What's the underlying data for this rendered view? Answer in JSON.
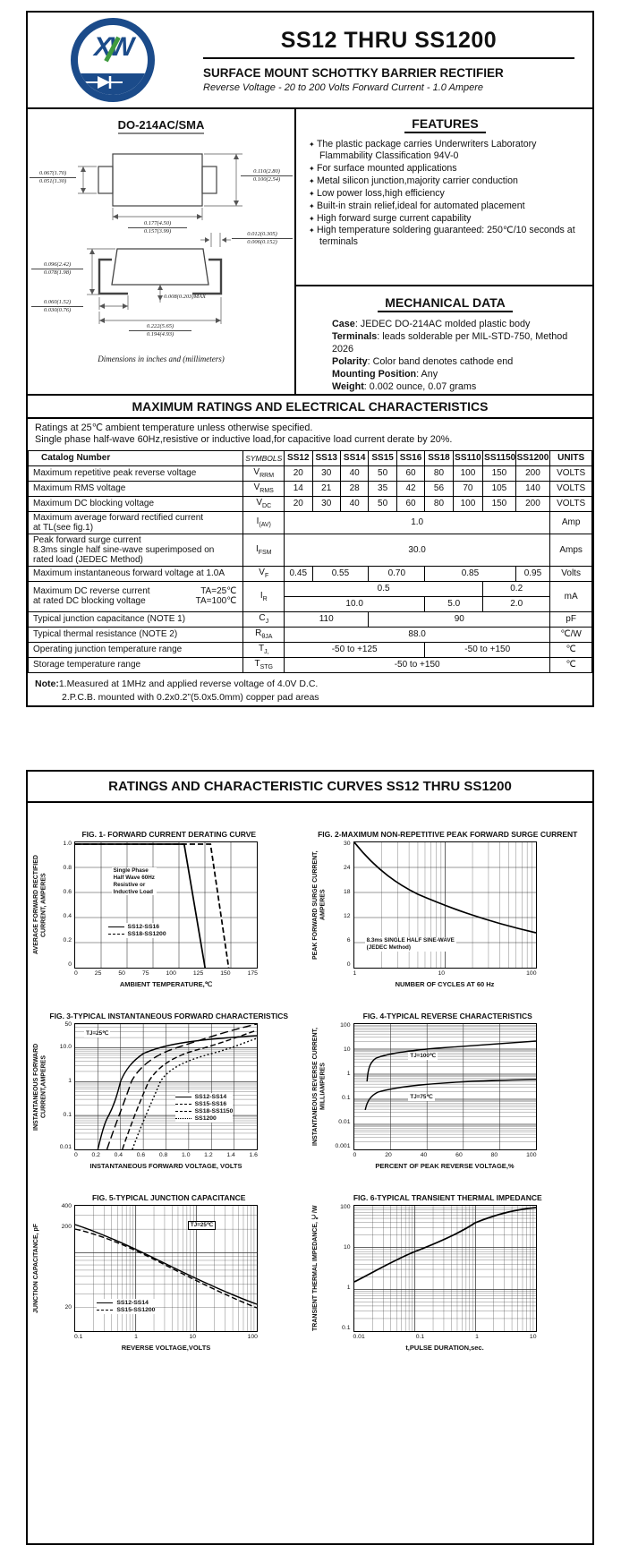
{
  "header": {
    "logo_text": "XW",
    "title": "SS12 THRU SS1200",
    "subtitle": "SURFACE MOUNT SCHOTTKY BARRIER RECTIFIER",
    "tagline": "Reverse Voltage - 20 to 200 Volts    Forward Current - 1.0 Ampere"
  },
  "package": {
    "name": "DO-214AC/SMA",
    "caption": "Dimensions in inches and (millimeters)",
    "dims": {
      "d1": {
        "t": "0.067(1.70)",
        "b": "0.051(1.30)"
      },
      "d2": {
        "t": "0.110(2.80)",
        "b": "0.100(2.54)"
      },
      "d3": {
        "t": "0.177(4.50)",
        "b": "0.157(3.99)"
      },
      "d4": {
        "t": "0.012(0.305)",
        "b": "0.006(0.152)"
      },
      "d5": {
        "t": "0.096(2.42)",
        "b": "0.078(1.98)"
      },
      "d6": {
        "t": "0.060(1.52)",
        "b": "0.030(0.76)"
      },
      "d7": {
        "t": "0.008(0.203)MAX"
      },
      "d8": {
        "t": "0.222(5.65)",
        "b": "0.194(4.93)"
      }
    }
  },
  "features": {
    "heading": "FEATURES",
    "items": [
      "The plastic package carries Underwriters Laboratory Flammability Classification 94V-0",
      "For surface mounted applications",
      "Metal silicon junction,majority carrier conduction",
      "Low power loss,high efficiency",
      "Built-in strain relief,ideal for automated placement",
      "High forward surge current capability",
      "High temperature soldering guaranteed: 250℃/10 seconds at terminals"
    ]
  },
  "mechanical": {
    "heading": "MECHANICAL DATA",
    "items": [
      {
        "label": "Case",
        "text": ": JEDEC DO-214AC molded plastic body"
      },
      {
        "label": "Terminals",
        "text": ": leads solderable per MIL-STD-750, Method 2026"
      },
      {
        "label": "Polarity",
        "text": ": Color band denotes cathode end"
      },
      {
        "label": "Mounting Position",
        "text": ": Any"
      },
      {
        "label": "Weight",
        "text": ": 0.002 ounce, 0.07 grams"
      }
    ]
  },
  "ratings": {
    "heading": "MAXIMUM RATINGS AND ELECTRICAL CHARACTERISTICS",
    "cond1": "Ratings at 25℃ ambient temperature unless otherwise specified.",
    "cond2": "Single phase half-wave 60Hz,resistive or inductive load,for capacitive load current derate by 20%.",
    "table": {
      "catalog": "Catalog   Number",
      "symbols": "SYMBOLS",
      "parts": [
        "SS12",
        "SS13",
        "SS14",
        "SS15",
        "SS16",
        "SS18",
        "SS110",
        "SS1150",
        "SS1200"
      ],
      "units": "UNITS",
      "rows": [
        {
          "label": "Maximum repetitive peak reverse voltage",
          "sym": "V",
          "sub": "RRM",
          "cells": [
            {
              "v": "20"
            },
            {
              "v": "30"
            },
            {
              "v": "40"
            },
            {
              "v": "50"
            },
            {
              "v": "60"
            },
            {
              "v": "80"
            },
            {
              "v": "100"
            },
            {
              "v": "150"
            },
            {
              "v": "200"
            }
          ],
          "unit": "VOLTS"
        },
        {
          "label": "Maximum RMS voltage",
          "sym": "V",
          "sub": "RMS",
          "cells": [
            {
              "v": "14"
            },
            {
              "v": "21"
            },
            {
              "v": "28"
            },
            {
              "v": "35"
            },
            {
              "v": "42"
            },
            {
              "v": "56"
            },
            {
              "v": "70"
            },
            {
              "v": "105"
            },
            {
              "v": "140"
            }
          ],
          "unit": "VOLTS"
        },
        {
          "label": "Maximum DC blocking voltage",
          "sym": "V",
          "sub": "DC",
          "cells": [
            {
              "v": "20"
            },
            {
              "v": "30"
            },
            {
              "v": "40"
            },
            {
              "v": "50"
            },
            {
              "v": "60"
            },
            {
              "v": "80"
            },
            {
              "v": "100"
            },
            {
              "v": "150"
            },
            {
              "v": "200"
            }
          ],
          "unit": "VOLTS"
        },
        {
          "label": "Maximum average forward rectified current",
          "label2": "at TL(see fig.1)",
          "sym": "I",
          "sub": "(AV)",
          "cells": [
            {
              "v": "1.0",
              "span": 9
            }
          ],
          "unit": "Amp"
        },
        {
          "label": "Peak forward surge current",
          "label2": "8.3ms single half sine-wave superimposed on",
          "label3": "rated load (JEDEC Method)",
          "sym": "I",
          "sub": "FSM",
          "cells": [
            {
              "v": "30.0",
              "span": 9
            }
          ],
          "unit": "Amps"
        },
        {
          "label": "Maximum instantaneous forward voltage at 1.0A",
          "sym": "V",
          "sub": "F",
          "cells": [
            {
              "v": "0.45",
              "span": 1
            },
            {
              "v": "0.55",
              "span": 2
            },
            {
              "v": "0.70",
              "span": 2
            },
            {
              "v": "0.85",
              "span": 3
            },
            {
              "v": "0.95",
              "span": 1
            }
          ],
          "unit": "Volts"
        },
        {
          "label": "Maximum DC reverse current",
          "cond1": "TA=25℃",
          "label2": "at rated DC blocking voltage",
          "cond2": "TA=100℃",
          "sym": "I",
          "sub": "R",
          "cells_a": [
            {
              "v": "0.5",
              "span": 7
            },
            {
              "v": "0.2",
              "span": 2
            }
          ],
          "cells_b": [
            {
              "v": "10.0",
              "span": 5
            },
            {
              "v": "5.0",
              "span": 2
            },
            {
              "v": "2.0",
              "span": 2
            }
          ],
          "unit": "mA"
        },
        {
          "label": "Typical junction capacitance (NOTE 1)",
          "sym": "C",
          "sub": "J",
          "cells": [
            {
              "v": "110",
              "span": 3
            },
            {
              "v": "90",
              "span": 6
            }
          ],
          "unit": "pF"
        },
        {
          "label": "Typical thermal resistance (NOTE 2)",
          "sym": "R",
          "sub": "θJA",
          "cells": [
            {
              "v": "88.0",
              "span": 9
            }
          ],
          "unit": "℃/W"
        },
        {
          "label": "Operating junction temperature range",
          "sym": "T",
          "sub": "J,",
          "cells": [
            {
              "v": "-50 to +125",
              "span": 5
            },
            {
              "v": "-50 to +150",
              "span": 4
            }
          ],
          "unit": "℃"
        },
        {
          "label": "Storage temperature range",
          "sym": "T",
          "sub": "STG",
          "cells": [
            {
              "v": "-50 to +150",
              "span": 9
            }
          ],
          "unit": "℃"
        }
      ]
    },
    "note_label": "Note:",
    "note1": "1.Measured at 1MHz and applied reverse voltage of 4.0V D.C.",
    "note2": "2.P.C.B. mounted with 0.2x0.2”(5.0x5.0mm) copper pad areas"
  },
  "page2": {
    "heading": "RATINGS AND CHARACTERISTIC CURVES SS12 THRU SS1200"
  },
  "chart_data": [
    {
      "type": "line",
      "title": "FIG. 1- FORWARD CURRENT DERATING CURVE",
      "ylabel": "AVERAGE FORWARD RECTIFIED CURRENT, AMPERES",
      "xlabel": "AMBIENT TEMPERATURE,℃",
      "xlim": [
        0,
        175
      ],
      "ylim": [
        0,
        1.0
      ],
      "xticks": [
        "0",
        "25",
        "50",
        "75",
        "100",
        "125",
        "150",
        "175"
      ],
      "yticks": [
        "1.0",
        "0.8",
        "0.6",
        "0.4",
        "0.2",
        "0"
      ],
      "annotation": "Single Phase\nHalf Wave 60Hz\nResistive or\nInductive Load",
      "legend_position": "lower-left-inside",
      "grid": true,
      "series": [
        {
          "name": "SS12-SS16",
          "style": "solid",
          "x": [
            0,
            100,
            125
          ],
          "y": [
            1.0,
            1.0,
            0
          ]
        },
        {
          "name": "SS18-SS1200",
          "style": "dashed",
          "x": [
            0,
            130,
            148
          ],
          "y": [
            1.0,
            1.0,
            0
          ]
        }
      ]
    },
    {
      "type": "line",
      "title": "FIG. 2-MAXIMUM NON-REPETITIVE PEAK FORWARD SURGE CURRENT",
      "ylabel": "PEAK FORWARD SURGE CURRENT, AMPERES",
      "xlabel": "NUMBER OF CYCLES AT 60 Hz",
      "xscale": "log",
      "xlim": [
        1,
        100
      ],
      "ylim": [
        0,
        30
      ],
      "xticks": [
        "1",
        "10",
        "100"
      ],
      "yticks": [
        "30",
        "24",
        "18",
        "12",
        "6",
        "0"
      ],
      "annotation": "8.3ms SINGLE HALF SINE-WAVE\n(JEDEC Method)",
      "grid": true,
      "series": [
        {
          "name": "surge current",
          "style": "solid",
          "x": [
            1,
            2,
            5,
            10,
            20,
            50,
            100
          ],
          "y": [
            30,
            24,
            18.5,
            15,
            12,
            9.5,
            8
          ]
        }
      ]
    },
    {
      "type": "line",
      "title": "FIG. 3-TYPICAL INSTANTANEOUS FORWARD CHARACTERISTICS",
      "ylabel": "INSTANTANEOUS FORWARD CURRENT,AMPERES",
      "xlabel": "INSTANTANEOUS FORWARD VOLTAGE, VOLTS",
      "yscale": "log",
      "xlim": [
        0,
        1.6
      ],
      "ylim": [
        0.01,
        50
      ],
      "xticks": [
        "0",
        "0.2",
        "0.4",
        "0.6",
        "0.8",
        "1.0",
        "1.2",
        "1.4",
        "1.6"
      ],
      "yticks": [
        "50",
        "10.0",
        "1",
        "0.1",
        "0.01"
      ],
      "annotation": "TJ=25℃",
      "legend_position": "right-inside",
      "grid": true,
      "series": [
        {
          "name": "SS12-SS14",
          "style": "solid",
          "x": [
            0.2,
            0.4,
            0.6,
            1.0,
            1.6
          ],
          "y": [
            0.01,
            1,
            5,
            15,
            22
          ]
        },
        {
          "name": "SS15-SS16",
          "style": "long-dash",
          "x": [
            0.28,
            0.5,
            0.8,
            1.3,
            1.6
          ],
          "y": [
            0.01,
            1,
            8,
            30,
            50
          ]
        },
        {
          "name": "SS18-SS1150",
          "style": "dash",
          "x": [
            0.42,
            0.65,
            1.0,
            1.6
          ],
          "y": [
            0.01,
            1,
            8,
            35
          ]
        },
        {
          "name": "SS1200",
          "style": "dotted",
          "x": [
            0.5,
            0.75,
            1.2,
            1.6
          ],
          "y": [
            0.01,
            1,
            6,
            20
          ]
        }
      ]
    },
    {
      "type": "line",
      "title": "FIG. 4-TYPICAL REVERSE CHARACTERISTICS",
      "ylabel": "INSTANTANEOUS REVERSE CURRENT, MILLIAMPERES",
      "xlabel": "PERCENT OF PEAK REVERSE VOLTAGE,%",
      "yscale": "log",
      "xlim": [
        0,
        100
      ],
      "ylim": [
        0.001,
        100
      ],
      "xticks": [
        "0",
        "20",
        "40",
        "60",
        "80",
        "100"
      ],
      "yticks": [
        "100",
        "10",
        "1",
        "0.1",
        "0.01",
        "0.001"
      ],
      "grid": true,
      "series": [
        {
          "name": "TJ=100℃",
          "style": "solid",
          "x": [
            8,
            15,
            30,
            60,
            100
          ],
          "y": [
            1,
            5,
            8,
            12,
            20
          ]
        },
        {
          "name": "TJ=75℃",
          "style": "solid",
          "x": [
            8,
            20,
            50,
            100
          ],
          "y": [
            0.05,
            0.2,
            0.4,
            0.55
          ]
        }
      ]
    },
    {
      "type": "line",
      "title": "FIG. 5-TYPICAL JUNCTION CAPACITANCE",
      "ylabel": "JUNCTION CAPACITANCE, pF",
      "xlabel": "REVERSE VOLTAGE,VOLTS",
      "xscale": "log",
      "yscale": "log",
      "xlim": [
        0.1,
        100
      ],
      "ylim": [
        10,
        400
      ],
      "xticks": [
        "0.1",
        "1",
        "10",
        "100"
      ],
      "yticks": [
        "400",
        "200",
        "20"
      ],
      "annotation": "TJ=25℃",
      "legend_position": "lower-left-inside",
      "grid": true,
      "series": [
        {
          "name": "SS12-SS14",
          "style": "solid",
          "x": [
            0.1,
            1,
            10,
            100
          ],
          "y": [
            230,
            110,
            45,
            22
          ]
        },
        {
          "name": "SS15-SS1200",
          "style": "dashed",
          "x": [
            0.1,
            1,
            10,
            100
          ],
          "y": [
            200,
            100,
            40,
            20
          ]
        }
      ]
    },
    {
      "type": "line",
      "title": "FIG. 6-TYPICAL TRANSIENT THERMAL IMPEDANCE",
      "ylabel": "TRANSIENT THERMAL IMPEDANCE, ℃/W",
      "xlabel": "t,PULSE DURATION,sec.",
      "xscale": "log",
      "yscale": "log",
      "xlim": [
        0.01,
        10
      ],
      "ylim": [
        0.1,
        100
      ],
      "xticks": [
        "0.01",
        "0.1",
        "1",
        "10"
      ],
      "yticks": [
        "100",
        "10",
        "1",
        "0.1"
      ],
      "grid": true,
      "series": [
        {
          "name": "transient thermal impedance",
          "style": "solid",
          "x": [
            0.01,
            0.1,
            1,
            10
          ],
          "y": [
            1.5,
            8,
            40,
            90
          ]
        }
      ]
    }
  ]
}
